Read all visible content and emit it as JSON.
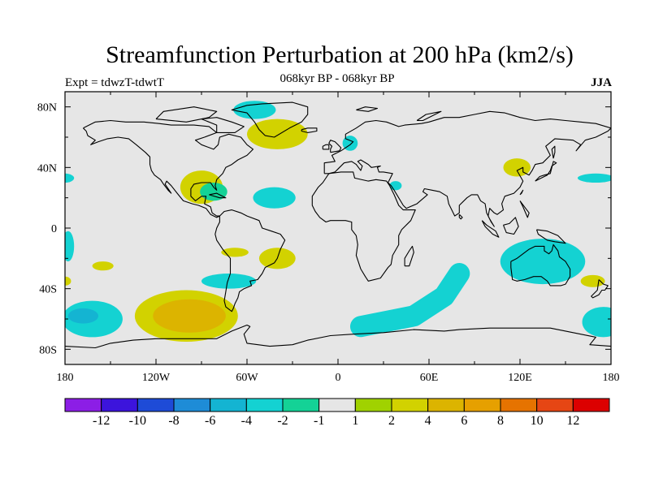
{
  "title": "Streamfunction Perturbation at 200 hPa (km2/s)",
  "subtitle": "068kyr BP - 068kyr BP",
  "experiment": "Expt = tdwzT-tdwtT",
  "season": "JJA",
  "map": {
    "background": "#e6e6e6",
    "lon_range": [
      -180,
      180
    ],
    "lat_range": [
      -90,
      90
    ],
    "lat_ticks": [
      {
        "lat": 80,
        "label": "80N"
      },
      {
        "lat": 40,
        "label": "40N"
      },
      {
        "lat": 0,
        "label": "0"
      },
      {
        "lat": -40,
        "label": "40S"
      },
      {
        "lat": -80,
        "label": "80S"
      }
    ],
    "lon_ticks": [
      {
        "lon": -180,
        "label": "180"
      },
      {
        "lon": -120,
        "label": "120W"
      },
      {
        "lon": -60,
        "label": "60W"
      },
      {
        "lon": 0,
        "label": "0"
      },
      {
        "lon": 60,
        "label": "60E"
      },
      {
        "lon": 120,
        "label": "120E"
      },
      {
        "lon": 180,
        "label": "180"
      }
    ]
  },
  "colorbar": {
    "colors": [
      "#8c1ee6",
      "#3c14dc",
      "#1e4bd7",
      "#1e8cd7",
      "#14b4d2",
      "#14d2d2",
      "#14d296",
      "#e6e6e6",
      "#a0d200",
      "#d2d200",
      "#dcb400",
      "#e6a000",
      "#e67300",
      "#e64614",
      "#dc0000"
    ],
    "labels": [
      "-12",
      "-10",
      "-8",
      "-6",
      "-4",
      "-2",
      "-1",
      "1",
      "2",
      "4",
      "6",
      "8",
      "10",
      "12"
    ]
  },
  "anomalies": [
    {
      "lon": -55,
      "lat": 78,
      "rx": 14,
      "ry": 6,
      "level": "-2"
    },
    {
      "lon": -40,
      "lat": 62,
      "rx": 20,
      "ry": 10,
      "level": "2"
    },
    {
      "lon": 8,
      "lat": 56,
      "rx": 5,
      "ry": 5,
      "level": "-2"
    },
    {
      "lon": 118,
      "lat": 40,
      "rx": 9,
      "ry": 6,
      "level": "2"
    },
    {
      "lon": -90,
      "lat": 27,
      "rx": 14,
      "ry": 11,
      "level": "2"
    },
    {
      "lon": -82,
      "lat": 24,
      "rx": 9,
      "ry": 6,
      "level": "-1"
    },
    {
      "lon": -42,
      "lat": 20,
      "rx": 14,
      "ry": 7,
      "level": "-2"
    },
    {
      "lon": 38,
      "lat": 28,
      "rx": 4,
      "ry": 3,
      "level": "-2"
    },
    {
      "lon": 170,
      "lat": 33,
      "rx": 12,
      "ry": 3,
      "level": "-2"
    },
    {
      "lon": -180,
      "lat": 33,
      "rx": 6,
      "ry": 3,
      "level": "-2"
    },
    {
      "lon": -178,
      "lat": -12,
      "rx": 4,
      "ry": 10,
      "level": "-2"
    },
    {
      "lon": -155,
      "lat": -25,
      "rx": 7,
      "ry": 3,
      "level": "2"
    },
    {
      "lon": -68,
      "lat": -16,
      "rx": 9,
      "ry": 3,
      "level": "2"
    },
    {
      "lon": -40,
      "lat": -20,
      "rx": 12,
      "ry": 7,
      "level": "2"
    },
    {
      "lon": -72,
      "lat": -35,
      "rx": 18,
      "ry": 5,
      "level": "-2"
    },
    {
      "lon": -162,
      "lat": -60,
      "rx": 20,
      "ry": 12,
      "level": "-2"
    },
    {
      "lon": -168,
      "lat": -58,
      "rx": 10,
      "ry": 5,
      "level": "-4"
    },
    {
      "lon": -100,
      "lat": -58,
      "rx": 34,
      "ry": 17,
      "level": "2"
    },
    {
      "lon": -98,
      "lat": -58,
      "rx": 24,
      "ry": 11,
      "level": "4"
    },
    {
      "lon": 135,
      "lat": -22,
      "rx": 28,
      "ry": 15,
      "level": "-2"
    },
    {
      "lon": 175,
      "lat": -62,
      "rx": 14,
      "ry": 10,
      "level": "-2"
    },
    {
      "lon": 168,
      "lat": -35,
      "rx": 8,
      "ry": 4,
      "level": "2"
    },
    {
      "lon": -180,
      "lat": -35,
      "rx": 4,
      "ry": 3,
      "level": "2"
    }
  ],
  "streaks": [
    {
      "path": [
        [
          15,
          -65
        ],
        [
          50,
          -58
        ],
        [
          70,
          -45
        ],
        [
          80,
          -30
        ]
      ],
      "level": "-2"
    }
  ]
}
